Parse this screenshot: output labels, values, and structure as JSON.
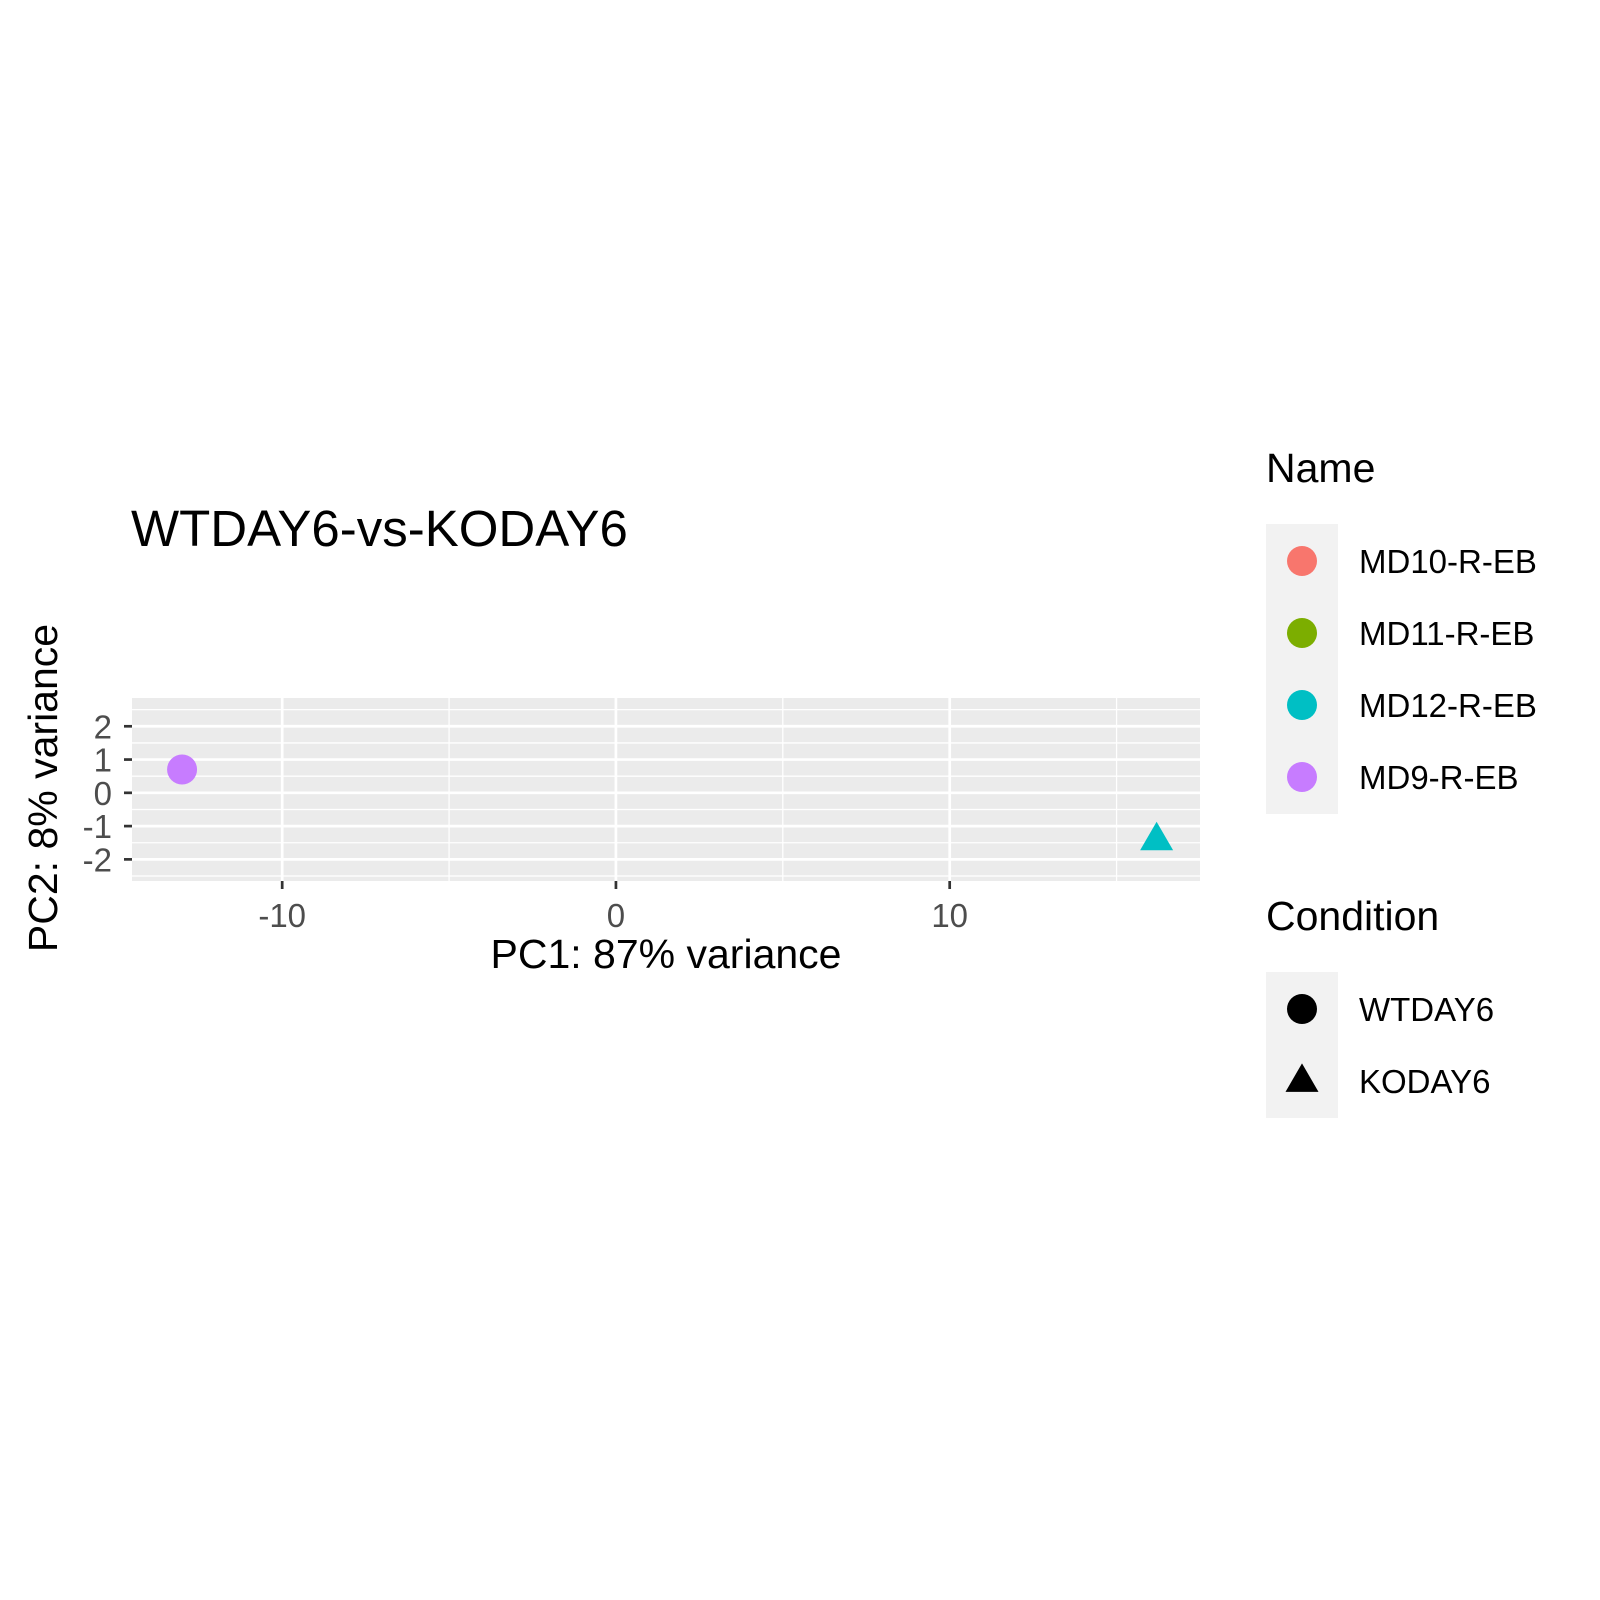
{
  "chart_data": {
    "type": "scatter",
    "title": "WTDAY6-vs-KODAY6",
    "xlabel": "PC1: 87% variance",
    "ylabel": "PC2: 8% variance",
    "xlim": [
      -14.5,
      17.5
    ],
    "ylim": [
      -2.65,
      2.85
    ],
    "x_ticks": [
      -10,
      0,
      10
    ],
    "x_tick_labels": [
      "-10",
      "0",
      "10"
    ],
    "y_ticks": [
      -2,
      -1,
      0,
      1,
      2
    ],
    "y_tick_labels": [
      "-2",
      "-1",
      "0",
      "1",
      "2"
    ],
    "x_minor_ticks": [
      -5,
      5,
      15
    ],
    "y_minor_ticks": [
      -2.5,
      -1.5,
      -0.5,
      0.5,
      1.5,
      2.5
    ],
    "grid": true,
    "panel_background": "#EBEBEB",
    "legend_position": "right",
    "points": [
      {
        "name": "MD9-R-EB",
        "condition": "WTDAY6",
        "x": -13.0,
        "y": 0.7
      },
      {
        "name": "MD12-R-EB",
        "condition": "KODAY6",
        "x": 16.2,
        "y": -1.4
      }
    ],
    "legends": [
      {
        "title": "Name",
        "type": "color",
        "items": [
          {
            "label": "MD10-R-EB",
            "color": "#F8766D"
          },
          {
            "label": "MD11-R-EB",
            "color": "#7CAE00"
          },
          {
            "label": "MD12-R-EB",
            "color": "#00BFC4"
          },
          {
            "label": "MD9-R-EB",
            "color": "#C77CFF"
          }
        ]
      },
      {
        "title": "Condition",
        "type": "shape",
        "items": [
          {
            "label": "WTDAY6",
            "shape": "circle"
          },
          {
            "label": "KODAY6",
            "shape": "triangle"
          }
        ]
      }
    ]
  }
}
